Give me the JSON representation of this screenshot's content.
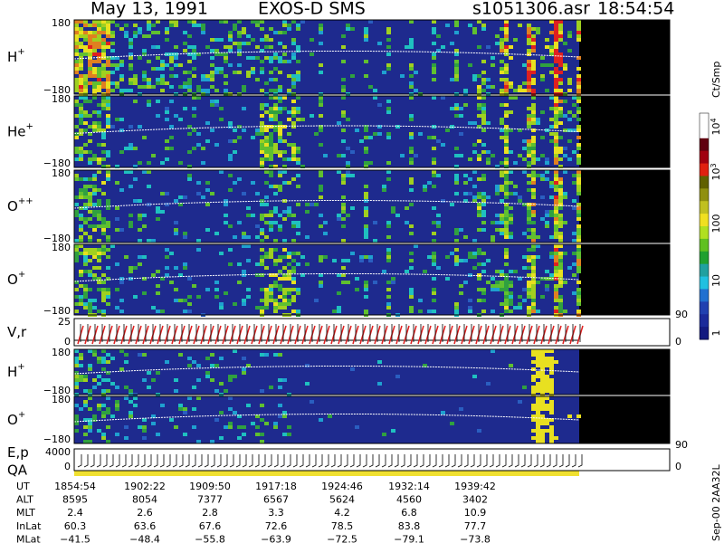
{
  "header": {
    "date": "May 13, 1991",
    "title": "EXOS-D SMS",
    "file": "s1051306.asr",
    "time": "18:54:54"
  },
  "panels": [
    {
      "label": "H",
      "sup": "+",
      "top": "180",
      "bottom": "−180"
    },
    {
      "label": "He",
      "sup": "+",
      "top": "180",
      "bottom": "−180"
    },
    {
      "label": "O",
      "sup": "++",
      "top": "180",
      "bottom": "−180"
    },
    {
      "label": "O",
      "sup": "+",
      "top": "180",
      "bottom": "−180"
    },
    {
      "label": "V,r",
      "top": "25",
      "bottom": "0",
      "right_top": "90",
      "right_bottom": "0"
    },
    {
      "label": "H",
      "sup": "+",
      "top": "180",
      "bottom": "−180"
    },
    {
      "label": "O",
      "sup": "+",
      "top": "180",
      "bottom": "−180"
    },
    {
      "label": "E,p",
      "sub_label": "QA",
      "top": "4000",
      "bottom": "0",
      "right_top": "90",
      "right_bottom": "0"
    }
  ],
  "colorbar": {
    "unit": "Ct/Smp",
    "labels": [
      {
        "base": "10",
        "sup": "4"
      },
      {
        "base": "10",
        "sup": "3"
      },
      {
        "base": "100"
      },
      {
        "base": "10"
      },
      {
        "base": "1"
      }
    ]
  },
  "table": {
    "rows": [
      [
        "UT",
        "1854:54",
        "1902:22",
        "1909:50",
        "1917:18",
        "1924:46",
        "1932:14",
        "1939:42"
      ],
      [
        "ALT",
        "8595",
        "8054",
        "7377",
        "6567",
        "5624",
        "4560",
        "3402"
      ],
      [
        "MLT",
        "2.4",
        "2.6",
        "2.8",
        "3.3",
        "4.2",
        "6.8",
        "10.9"
      ],
      [
        "InLat",
        "60.3",
        "63.6",
        "67.6",
        "72.6",
        "78.5",
        "83.8",
        "77.7"
      ],
      [
        "MLat",
        "−41.5",
        "−48.4",
        "−55.8",
        "−63.9",
        "−72.5",
        "−79.1",
        "−73.8"
      ]
    ]
  },
  "footer": "Sep-00  2AA32L"
}
